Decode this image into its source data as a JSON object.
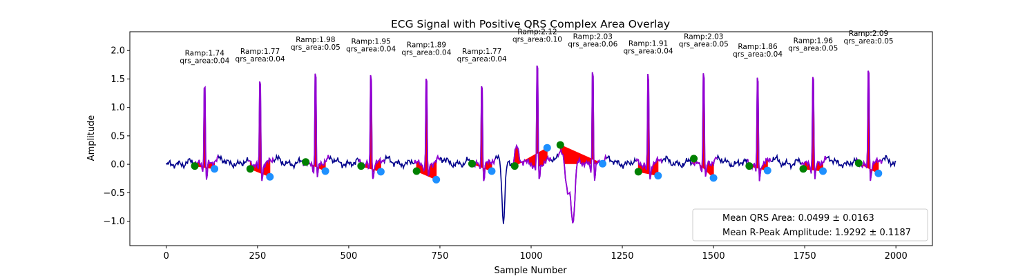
{
  "chart_data": {
    "type": "line",
    "title": "ECG Signal with Positive QRS Complex Area Overlay",
    "xlabel": "Sample Number",
    "ylabel": "Amplitude",
    "xlim": [
      -100,
      2100
    ],
    "ylim": [
      -1.43,
      2.33
    ],
    "xticks": [
      0,
      250,
      500,
      750,
      1000,
      1250,
      1500,
      1750,
      2000
    ],
    "yticks": [
      -1.0,
      -0.5,
      0.0,
      0.5,
      1.0,
      1.5,
      2.0
    ],
    "xtick_labels": [
      "0",
      "250",
      "500",
      "750",
      "1000",
      "1250",
      "1500",
      "1750",
      "2000"
    ],
    "ytick_labels": [
      "−1.0",
      "−0.5",
      "0.0",
      "0.5",
      "1.0",
      "1.5",
      "2.0"
    ],
    "grid": false,
    "legend_placement": "lower right",
    "colors": {
      "signal": "#00008b",
      "qrs_segment": "#9400d3",
      "qrs_fill": "#ff0000",
      "q_point": "#008000",
      "s_point": "#1e90ff"
    },
    "r_peaks": [
      {
        "x": 105,
        "y": 1.74,
        "label1": "Ramp:1.74",
        "label2": "qrs_area:0.04"
      },
      {
        "x": 257,
        "y": 1.77,
        "label1": "Ramp:1.77",
        "label2": "qrs_area:0.04"
      },
      {
        "x": 409,
        "y": 1.98,
        "label1": "Ramp:1.98",
        "label2": "qrs_area:0.05"
      },
      {
        "x": 561,
        "y": 1.95,
        "label1": "Ramp:1.95",
        "label2": "qrs_area:0.04"
      },
      {
        "x": 713,
        "y": 1.89,
        "label1": "Ramp:1.89",
        "label2": "qrs_area:0.04"
      },
      {
        "x": 865,
        "y": 1.77,
        "label1": "Ramp:1.77",
        "label2": "qrs_area:0.04"
      },
      {
        "x": 1017,
        "y": 2.12,
        "label1": "Ramp:2.12",
        "label2": "qrs_area:0.10"
      },
      {
        "x": 1169,
        "y": 2.03,
        "label1": "Ramp:2.03",
        "label2": "qrs_area:0.06"
      },
      {
        "x": 1321,
        "y": 1.91,
        "label1": "Ramp:1.91",
        "label2": "qrs_area:0.04"
      },
      {
        "x": 1473,
        "y": 2.03,
        "label1": "Ramp:2.03",
        "label2": "qrs_area:0.05"
      },
      {
        "x": 1621,
        "y": 1.86,
        "label1": "Ramp:1.86",
        "label2": "qrs_area:0.04"
      },
      {
        "x": 1773,
        "y": 1.96,
        "label1": "Ramp:1.96",
        "label2": "qrs_area:0.05"
      },
      {
        "x": 1925,
        "y": 2.09,
        "label1": "Ramp:2.09",
        "label2": "qrs_area:0.05"
      }
    ],
    "q_points": [
      {
        "x": 78,
        "y": -0.03
      },
      {
        "x": 230,
        "y": -0.08
      },
      {
        "x": 382,
        "y": 0.04
      },
      {
        "x": 534,
        "y": -0.03
      },
      {
        "x": 686,
        "y": -0.12
      },
      {
        "x": 838,
        "y": 0.01
      },
      {
        "x": 955,
        "y": -0.03
      },
      {
        "x": 1080,
        "y": 0.34
      },
      {
        "x": 1294,
        "y": -0.13
      },
      {
        "x": 1446,
        "y": 0.1
      },
      {
        "x": 1598,
        "y": -0.03
      },
      {
        "x": 1746,
        "y": -0.08
      },
      {
        "x": 1898,
        "y": 0.02
      }
    ],
    "s_points": [
      {
        "x": 132,
        "y": -0.08
      },
      {
        "x": 284,
        "y": -0.22
      },
      {
        "x": 436,
        "y": -0.12
      },
      {
        "x": 588,
        "y": -0.13
      },
      {
        "x": 740,
        "y": -0.27
      },
      {
        "x": 892,
        "y": -0.12
      },
      {
        "x": 1044,
        "y": 0.29
      },
      {
        "x": 1196,
        "y": 0.01
      },
      {
        "x": 1348,
        "y": -0.2
      },
      {
        "x": 1500,
        "y": -0.24
      },
      {
        "x": 1648,
        "y": -0.11
      },
      {
        "x": 1800,
        "y": -0.12
      },
      {
        "x": 1952,
        "y": -0.16
      }
    ],
    "legend": [
      "Mean QRS Area: 0.0499 ± 0.0163",
      "Mean R-Peak Amplitude: 1.9292 ± 0.1187"
    ]
  }
}
